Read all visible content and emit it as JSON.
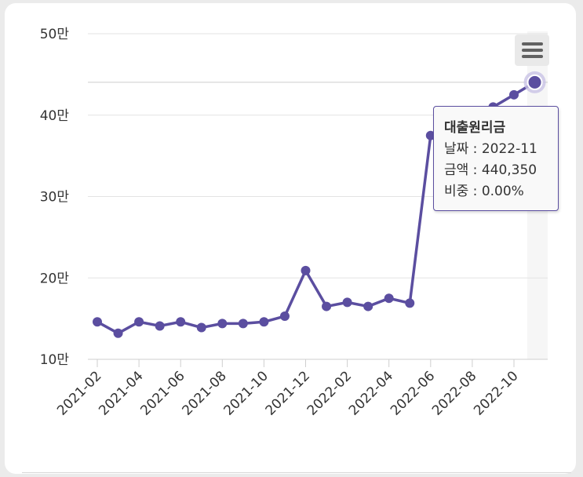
{
  "chart_data": {
    "type": "line",
    "x": [
      "2021-02",
      "2021-03",
      "2021-04",
      "2021-05",
      "2021-06",
      "2021-07",
      "2021-08",
      "2021-09",
      "2021-10",
      "2021-11",
      "2021-12",
      "2022-01",
      "2022-02",
      "2022-03",
      "2022-04",
      "2022-05",
      "2022-06",
      "2022-07",
      "2022-08",
      "2022-09",
      "2022-10",
      "2022-11"
    ],
    "series": [
      {
        "name": "대출원리금",
        "values": [
          146000,
          132000,
          146000,
          141000,
          146000,
          139000,
          144000,
          144000,
          146000,
          153000,
          209000,
          165000,
          170000,
          165000,
          175000,
          169000,
          375000,
          390000,
          405000,
          410000,
          425000,
          440350
        ]
      }
    ],
    "x_tick_labels": [
      "2021-02",
      "2021-04",
      "2021-06",
      "2021-08",
      "2021-10",
      "2021-12",
      "2022-02",
      "2022-04",
      "2022-06",
      "2022-08",
      "2022-10"
    ],
    "y_tick_values": [
      100000,
      200000,
      300000,
      400000,
      500000
    ],
    "y_tick_labels": [
      "10만",
      "20만",
      "30만",
      "40만",
      "50만"
    ],
    "ylim": [
      100000,
      500000
    ],
    "grid": true,
    "colors": {
      "line": "#5b4ea0",
      "point": "#5b4ea0",
      "highlight_halo": "#c9c3e6",
      "grid": "#e3e3e3"
    },
    "highlighted_index": 21
  },
  "tooltip": {
    "title": "대출원리금",
    "date_line": "날짜 : 2022-11",
    "amount_line": "금액 : 440,350",
    "ratio_line": "비중 : 0.00%"
  },
  "menu": {
    "icon": "hamburger-menu-icon"
  }
}
